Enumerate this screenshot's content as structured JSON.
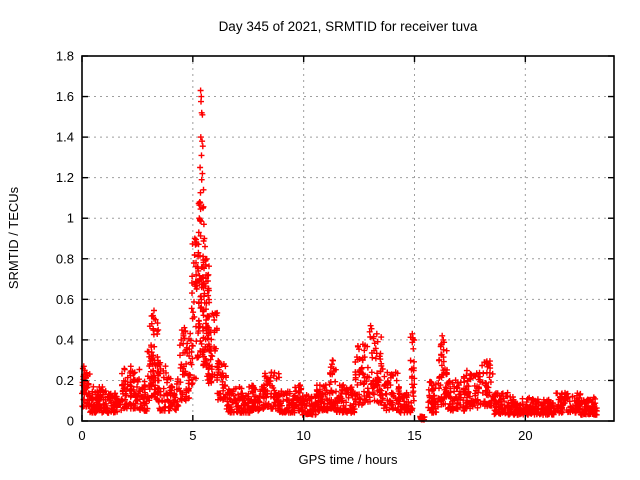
{
  "title": "Day 345 of 2021, SRMTID for receiver tuva",
  "chart_data": {
    "type": "scatter",
    "title": "Day 345 of 2021, SRMTID for receiver tuva",
    "xlabel": "GPS time / hours",
    "ylabel": "SRMTID / TECUs",
    "xlim": [
      0,
      24
    ],
    "ylim": [
      0,
      1.8
    ],
    "xticks": [
      0,
      5,
      10,
      15,
      20
    ],
    "yticks": [
      0,
      0.2,
      0.4,
      0.6,
      0.8,
      1,
      1.2,
      1.4,
      1.6,
      1.8
    ],
    "grid": true,
    "legend": "none",
    "marker": "plus",
    "marker_color": "#ff0000",
    "axis_color": "#000000",
    "grid_color": "#9e9e9e",
    "background": "#ffffff",
    "x_data_range": [
      0.05,
      23.25
    ],
    "peak_value": 1.63,
    "peak_time": 5.4,
    "envelope_bins": [
      [
        0.0,
        0.35,
        45,
        0.07,
        0.26,
        1.4
      ],
      [
        0.35,
        1.1,
        75,
        0.04,
        0.17,
        1.5
      ],
      [
        1.1,
        1.8,
        60,
        0.04,
        0.14,
        1.5
      ],
      [
        1.8,
        2.6,
        85,
        0.06,
        0.26,
        1.5
      ],
      [
        2.6,
        2.95,
        35,
        0.05,
        0.2,
        1.5
      ],
      [
        2.95,
        3.45,
        75,
        0.1,
        0.52,
        1.6
      ],
      [
        3.45,
        3.8,
        35,
        0.05,
        0.3,
        1.8
      ],
      [
        3.8,
        4.35,
        50,
        0.05,
        0.22,
        1.6
      ],
      [
        4.35,
        4.9,
        55,
        0.1,
        0.45,
        1.4
      ],
      [
        4.9,
        5.2,
        40,
        0.18,
        0.9,
        1.2
      ],
      [
        5.2,
        5.5,
        55,
        0.3,
        1.15,
        1.1
      ],
      [
        5.45,
        5.75,
        60,
        0.25,
        0.8,
        1.0
      ],
      [
        5.6,
        6.1,
        50,
        0.18,
        0.55,
        1.2
      ],
      [
        6.1,
        6.5,
        40,
        0.1,
        0.3,
        1.5
      ],
      [
        6.5,
        7.6,
        95,
        0.04,
        0.17,
        1.5
      ],
      [
        7.6,
        8.2,
        50,
        0.05,
        0.18,
        1.5
      ],
      [
        8.2,
        8.9,
        65,
        0.06,
        0.24,
        1.5
      ],
      [
        8.9,
        9.6,
        55,
        0.04,
        0.15,
        1.5
      ],
      [
        9.6,
        9.9,
        30,
        0.05,
        0.18,
        1.5
      ],
      [
        9.9,
        10.55,
        60,
        0.03,
        0.13,
        1.5
      ],
      [
        10.55,
        11.15,
        55,
        0.05,
        0.18,
        1.5
      ],
      [
        11.15,
        11.45,
        35,
        0.06,
        0.3,
        1.7
      ],
      [
        11.45,
        12.3,
        75,
        0.04,
        0.18,
        1.5
      ],
      [
        12.3,
        12.9,
        60,
        0.08,
        0.38,
        1.6
      ],
      [
        12.9,
        13.6,
        65,
        0.09,
        0.44,
        1.6
      ],
      [
        13.6,
        14.3,
        60,
        0.05,
        0.25,
        1.6
      ],
      [
        14.3,
        14.82,
        45,
        0.04,
        0.15,
        1.5
      ],
      [
        14.82,
        15.0,
        28,
        0.05,
        0.43,
        1.3
      ],
      [
        15.25,
        15.45,
        12,
        0.005,
        0.025,
        1.0
      ],
      [
        15.6,
        16.1,
        45,
        0.04,
        0.2,
        1.5
      ],
      [
        16.1,
        16.5,
        45,
        0.08,
        0.4,
        1.5
      ],
      [
        16.5,
        17.3,
        65,
        0.05,
        0.22,
        1.5
      ],
      [
        17.3,
        18.0,
        60,
        0.06,
        0.25,
        1.5
      ],
      [
        18.0,
        18.55,
        45,
        0.07,
        0.3,
        1.6
      ],
      [
        18.55,
        19.2,
        55,
        0.03,
        0.14,
        1.5
      ],
      [
        19.2,
        20.3,
        85,
        0.03,
        0.12,
        1.4
      ],
      [
        20.3,
        21.3,
        85,
        0.03,
        0.11,
        1.4
      ],
      [
        21.3,
        22.5,
        95,
        0.04,
        0.14,
        1.4
      ],
      [
        22.5,
        23.25,
        65,
        0.03,
        0.12,
        1.4
      ]
    ],
    "notable_points": [
      [
        5.35,
        1.63
      ],
      [
        5.38,
        1.6
      ],
      [
        5.37,
        1.575
      ],
      [
        5.4,
        1.52
      ],
      [
        5.43,
        1.51
      ],
      [
        5.36,
        1.4
      ],
      [
        5.42,
        1.38
      ],
      [
        5.45,
        1.355
      ],
      [
        5.39,
        1.31
      ],
      [
        5.33,
        1.25
      ],
      [
        5.43,
        1.22
      ],
      [
        5.4,
        1.19
      ],
      [
        5.48,
        1.14
      ],
      [
        5.31,
        1.08
      ],
      [
        5.46,
        1.05
      ],
      [
        5.29,
        1.0
      ],
      [
        5.5,
        0.97
      ],
      [
        5.27,
        0.93
      ],
      [
        5.52,
        0.9
      ],
      [
        5.55,
        0.86
      ],
      [
        5.25,
        0.83
      ],
      [
        5.57,
        0.79
      ],
      [
        5.22,
        0.76
      ],
      [
        5.6,
        0.72
      ],
      [
        5.18,
        0.68
      ],
      [
        4.62,
        0.46
      ],
      [
        4.66,
        0.44
      ],
      [
        4.58,
        0.42
      ],
      [
        3.25,
        0.545
      ],
      [
        3.2,
        0.52
      ],
      [
        3.32,
        0.5
      ],
      [
        3.15,
        0.48
      ],
      [
        13.02,
        0.47
      ],
      [
        13.06,
        0.455
      ],
      [
        12.98,
        0.44
      ],
      [
        13.3,
        0.43
      ],
      [
        16.25,
        0.42
      ],
      [
        16.3,
        0.4
      ],
      [
        16.22,
        0.38
      ],
      [
        14.9,
        0.43
      ],
      [
        14.93,
        0.41
      ],
      [
        11.3,
        0.3
      ],
      [
        11.28,
        0.28
      ],
      [
        2.2,
        0.27
      ],
      [
        0.08,
        0.27
      ],
      [
        0.12,
        0.25
      ],
      [
        8.55,
        0.24
      ],
      [
        15.3,
        0.012
      ],
      [
        15.33,
        0.02
      ],
      [
        15.36,
        0.01
      ],
      [
        15.31,
        0.022
      ],
      [
        15.35,
        0.018
      ],
      [
        15.28,
        0.015
      ]
    ]
  }
}
